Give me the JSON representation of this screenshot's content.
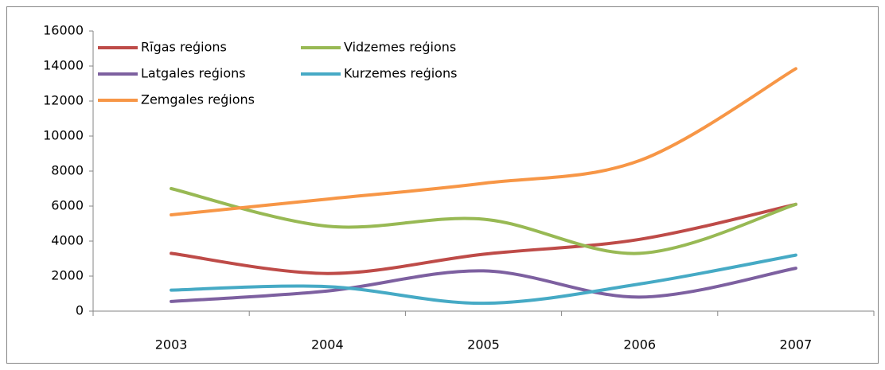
{
  "chart_data": {
    "type": "line",
    "categories": [
      "2003",
      "2004",
      "2005",
      "2006",
      "2007"
    ],
    "series": [
      {
        "name": "Rīgas reģions",
        "color": "#be4b48",
        "values": [
          3300,
          2150,
          3250,
          4100,
          6100
        ]
      },
      {
        "name": "Vidzemes reģions",
        "color": "#98b954",
        "values": [
          7000,
          4850,
          5250,
          3300,
          6100
        ]
      },
      {
        "name": "Latgales reģions",
        "color": "#7d60a0",
        "values": [
          550,
          1150,
          2300,
          800,
          2450
        ]
      },
      {
        "name": "Kurzemes reģions",
        "color": "#46aac5",
        "values": [
          1200,
          1400,
          450,
          1550,
          3200
        ]
      },
      {
        "name": "Zemgales reģions",
        "color": "#f79646",
        "values": [
          5500,
          6400,
          7300,
          8600,
          13850
        ]
      }
    ],
    "ylim": [
      0,
      16000
    ],
    "yticks": [
      0,
      2000,
      4000,
      6000,
      8000,
      10000,
      12000,
      14000,
      16000
    ],
    "grid": false,
    "legend": "top-left",
    "smooth": true
  }
}
